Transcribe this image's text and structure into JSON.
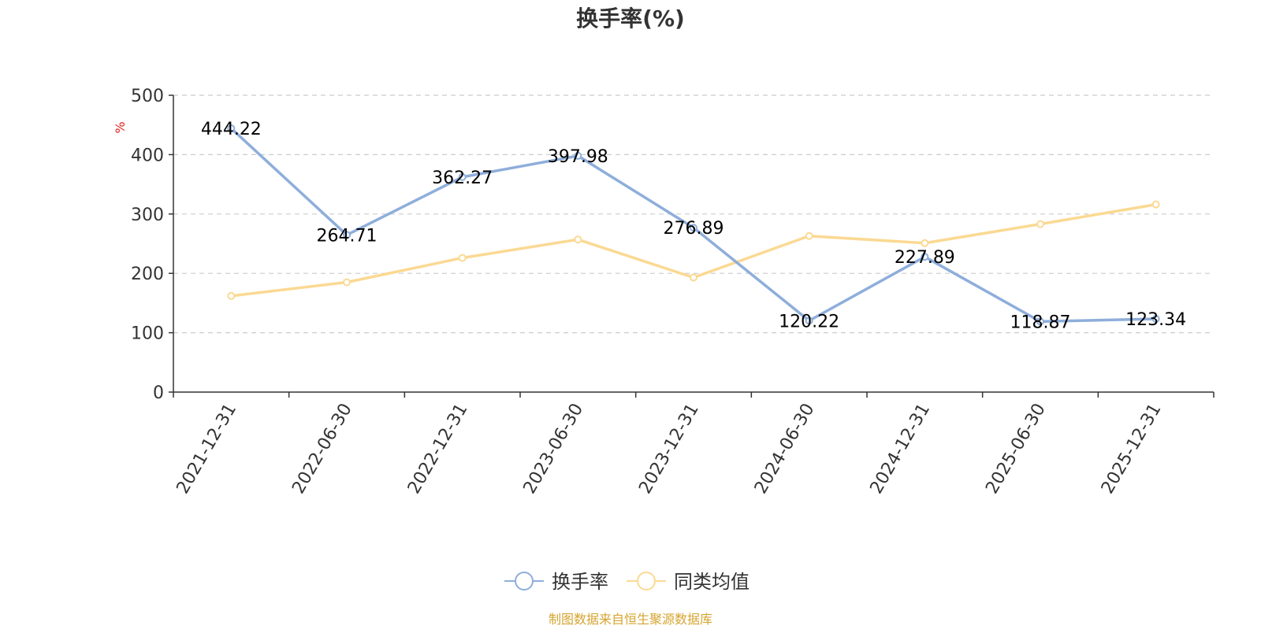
{
  "chart_data": {
    "type": "line",
    "title": "换手率(%)",
    "ylabel": "%",
    "ylim": [
      0,
      500
    ],
    "yticks": [
      "0",
      "100",
      "200",
      "300",
      "400",
      "500"
    ],
    "yticks_values": [
      0,
      100,
      200,
      300,
      400,
      500
    ],
    "categories": [
      "2021-12-31",
      "2022-06-30",
      "2022-12-31",
      "2023-06-30",
      "2023-12-31",
      "2024-06-30",
      "2024-12-31",
      "2025-06-30",
      "2025-12-31"
    ],
    "series": [
      {
        "name": "换手率",
        "color": "#8eaedb",
        "values": [
          444.22,
          264.71,
          362.27,
          397.98,
          276.89,
          120.22,
          227.89,
          118.87,
          123.34
        ],
        "labels": [
          "444.22",
          "264.71",
          "362.27",
          "397.98",
          "276.89",
          "120.22",
          "227.89",
          "118.87",
          "123.34"
        ],
        "show_labels": true
      },
      {
        "name": "同类均值",
        "color": "#fbd993",
        "values": [
          162,
          185,
          226,
          257,
          193,
          263,
          251,
          283,
          316
        ],
        "show_labels": false
      }
    ],
    "grid": true,
    "legend": "bottom-center",
    "source_note": "制图数据来自恒生聚源数据库",
    "source_color": "#d4a530",
    "unit_color": "#e02020"
  }
}
